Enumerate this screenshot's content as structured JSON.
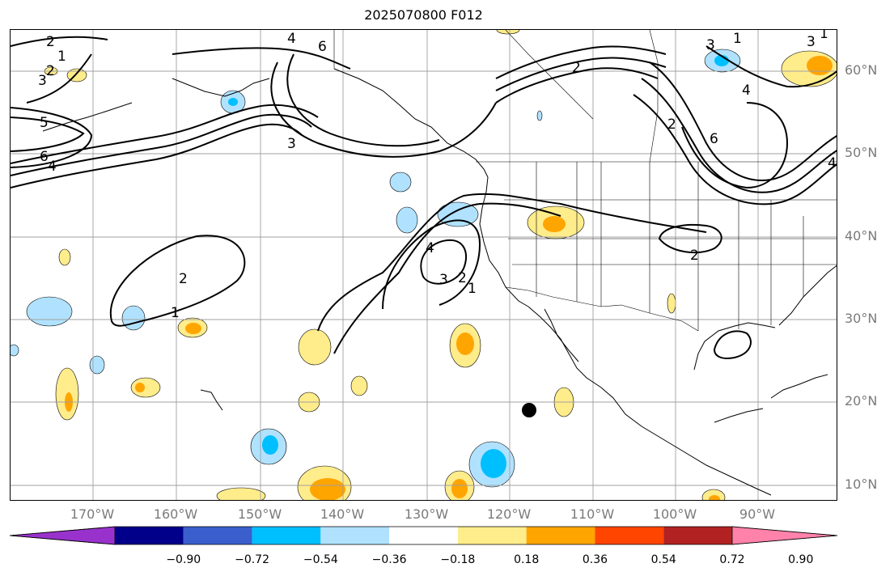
{
  "title": "2025070800 F012",
  "lat_labels": [
    "60°N",
    "50°N",
    "40°N",
    "30°N",
    "20°N",
    "10°N"
  ],
  "lon_labels": [
    "170°W",
    "160°W",
    "150°W",
    "140°W",
    "130°W",
    "120°W",
    "110°W",
    "100°W",
    "90°W"
  ],
  "colorbar": {
    "ticks": [
      "−0.90",
      "−0.72",
      "−0.54",
      "−0.36",
      "−0.18",
      "0.18",
      "0.36",
      "0.54",
      "0.72",
      "0.90"
    ],
    "colors": [
      "#9932cc",
      "#00008b",
      "#3a5fcd",
      "#00bfff",
      "#b0e2ff",
      "#ffffff",
      "#ffec8b",
      "#ffa500",
      "#ff4500",
      "#b22222",
      "#ff82ab"
    ]
  },
  "contour_labels": [
    "2",
    "1",
    "2",
    "3",
    "5",
    "6",
    "4",
    "4",
    "6",
    "3",
    "1",
    "2",
    "2",
    "3",
    "1",
    "4",
    "3",
    "2",
    "1",
    "2",
    "3",
    "1",
    "2",
    "4",
    "6",
    "4"
  ],
  "marker": "storm-center-dot"
}
